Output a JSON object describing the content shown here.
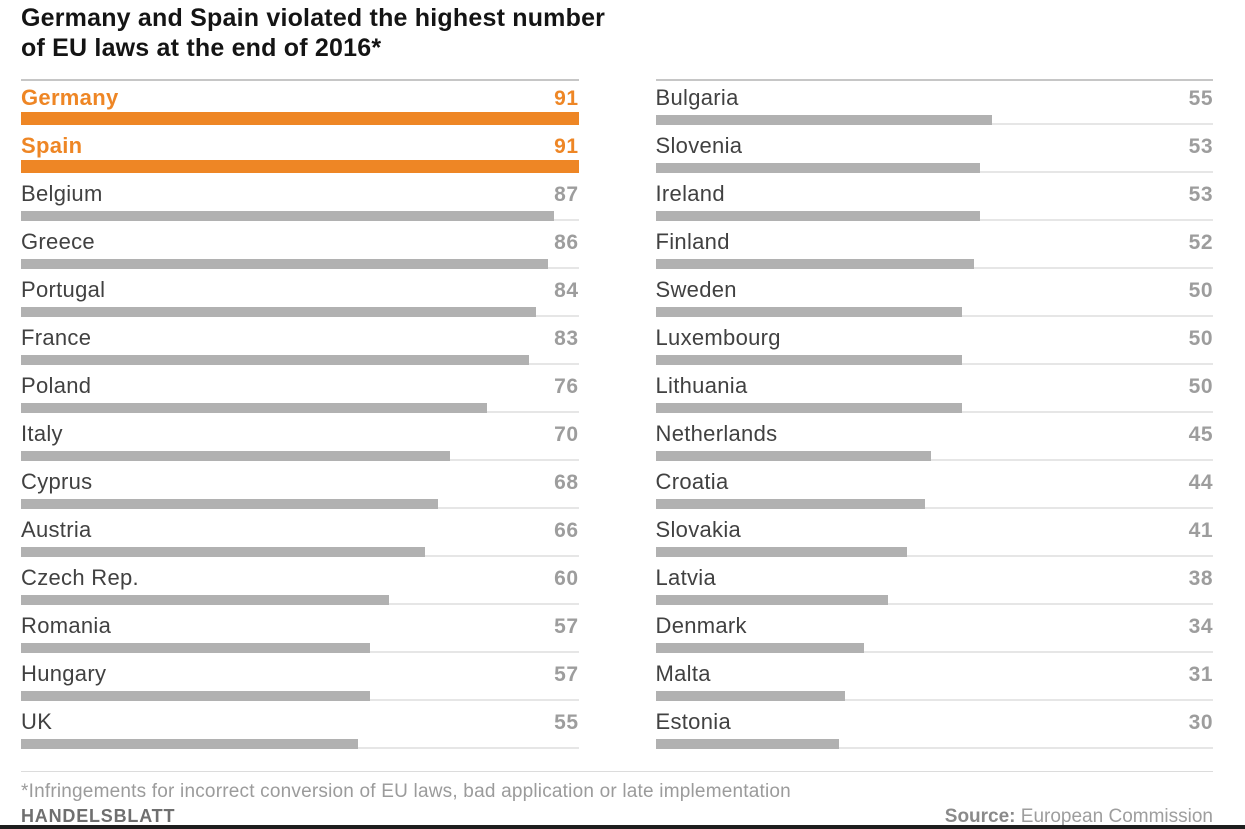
{
  "title": {
    "line1": "Germany and Spain violated the highest number",
    "line2": "of EU laws at the end of 2016*"
  },
  "chart_data": {
    "type": "bar",
    "orientation": "horizontal",
    "title": "Germany and Spain violated the highest number of EU laws at the end of 2016*",
    "value_axis_max": 91,
    "grid": false,
    "legend": "none",
    "value_label_position": "right-aligned",
    "colors": {
      "highlight": "#ee8625",
      "bar": "#b1b1b1",
      "track": "#e6e6e6"
    },
    "highlighted_categories": [
      "Germany",
      "Spain"
    ],
    "categories": [
      "Germany",
      "Spain",
      "Belgium",
      "Greece",
      "Portugal",
      "France",
      "Poland",
      "Italy",
      "Cyprus",
      "Austria",
      "Czech Rep.",
      "Romania",
      "Hungary",
      "UK",
      "Bulgaria",
      "Slovenia",
      "Ireland",
      "Finland",
      "Sweden",
      "Luxembourg",
      "Lithuania",
      "Netherlands",
      "Croatia",
      "Slovakia",
      "Latvia",
      "Denmark",
      "Malta",
      "Estonia"
    ],
    "values": [
      91,
      91,
      87,
      86,
      84,
      83,
      76,
      70,
      68,
      66,
      60,
      57,
      57,
      55,
      55,
      53,
      53,
      52,
      50,
      50,
      50,
      45,
      44,
      41,
      38,
      34,
      31,
      30
    ],
    "columns": [
      {
        "rows": [
          {
            "country": "Germany",
            "value": 91,
            "highlight": true
          },
          {
            "country": "Spain",
            "value": 91,
            "highlight": true
          },
          {
            "country": "Belgium",
            "value": 87,
            "highlight": false
          },
          {
            "country": "Greece",
            "value": 86,
            "highlight": false
          },
          {
            "country": "Portugal",
            "value": 84,
            "highlight": false
          },
          {
            "country": "France",
            "value": 83,
            "highlight": false
          },
          {
            "country": "Poland",
            "value": 76,
            "highlight": false
          },
          {
            "country": "Italy",
            "value": 70,
            "highlight": false
          },
          {
            "country": "Cyprus",
            "value": 68,
            "highlight": false
          },
          {
            "country": "Austria",
            "value": 66,
            "highlight": false
          },
          {
            "country": "Czech Rep.",
            "value": 60,
            "highlight": false
          },
          {
            "country": "Romania",
            "value": 57,
            "highlight": false
          },
          {
            "country": "Hungary",
            "value": 57,
            "highlight": false
          },
          {
            "country": "UK",
            "value": 55,
            "highlight": false
          }
        ]
      },
      {
        "rows": [
          {
            "country": "Bulgaria",
            "value": 55,
            "highlight": false
          },
          {
            "country": "Slovenia",
            "value": 53,
            "highlight": false
          },
          {
            "country": "Ireland",
            "value": 53,
            "highlight": false
          },
          {
            "country": "Finland",
            "value": 52,
            "highlight": false
          },
          {
            "country": "Sweden",
            "value": 50,
            "highlight": false
          },
          {
            "country": "Luxembourg",
            "value": 50,
            "highlight": false
          },
          {
            "country": "Lithuania",
            "value": 50,
            "highlight": false
          },
          {
            "country": "Netherlands",
            "value": 45,
            "highlight": false
          },
          {
            "country": "Croatia",
            "value": 44,
            "highlight": false
          },
          {
            "country": "Slovakia",
            "value": 41,
            "highlight": false
          },
          {
            "country": "Latvia",
            "value": 38,
            "highlight": false
          },
          {
            "country": "Denmark",
            "value": 34,
            "highlight": false
          },
          {
            "country": "Malta",
            "value": 31,
            "highlight": false
          },
          {
            "country": "Estonia",
            "value": 30,
            "highlight": false
          }
        ]
      }
    ]
  },
  "footer": {
    "footnote": "*Infringements for incorrect conversion of EU laws, bad application or late implementation",
    "brand": "HANDELSBLATT",
    "source_label": "Source:",
    "source_value": " European Commission"
  }
}
